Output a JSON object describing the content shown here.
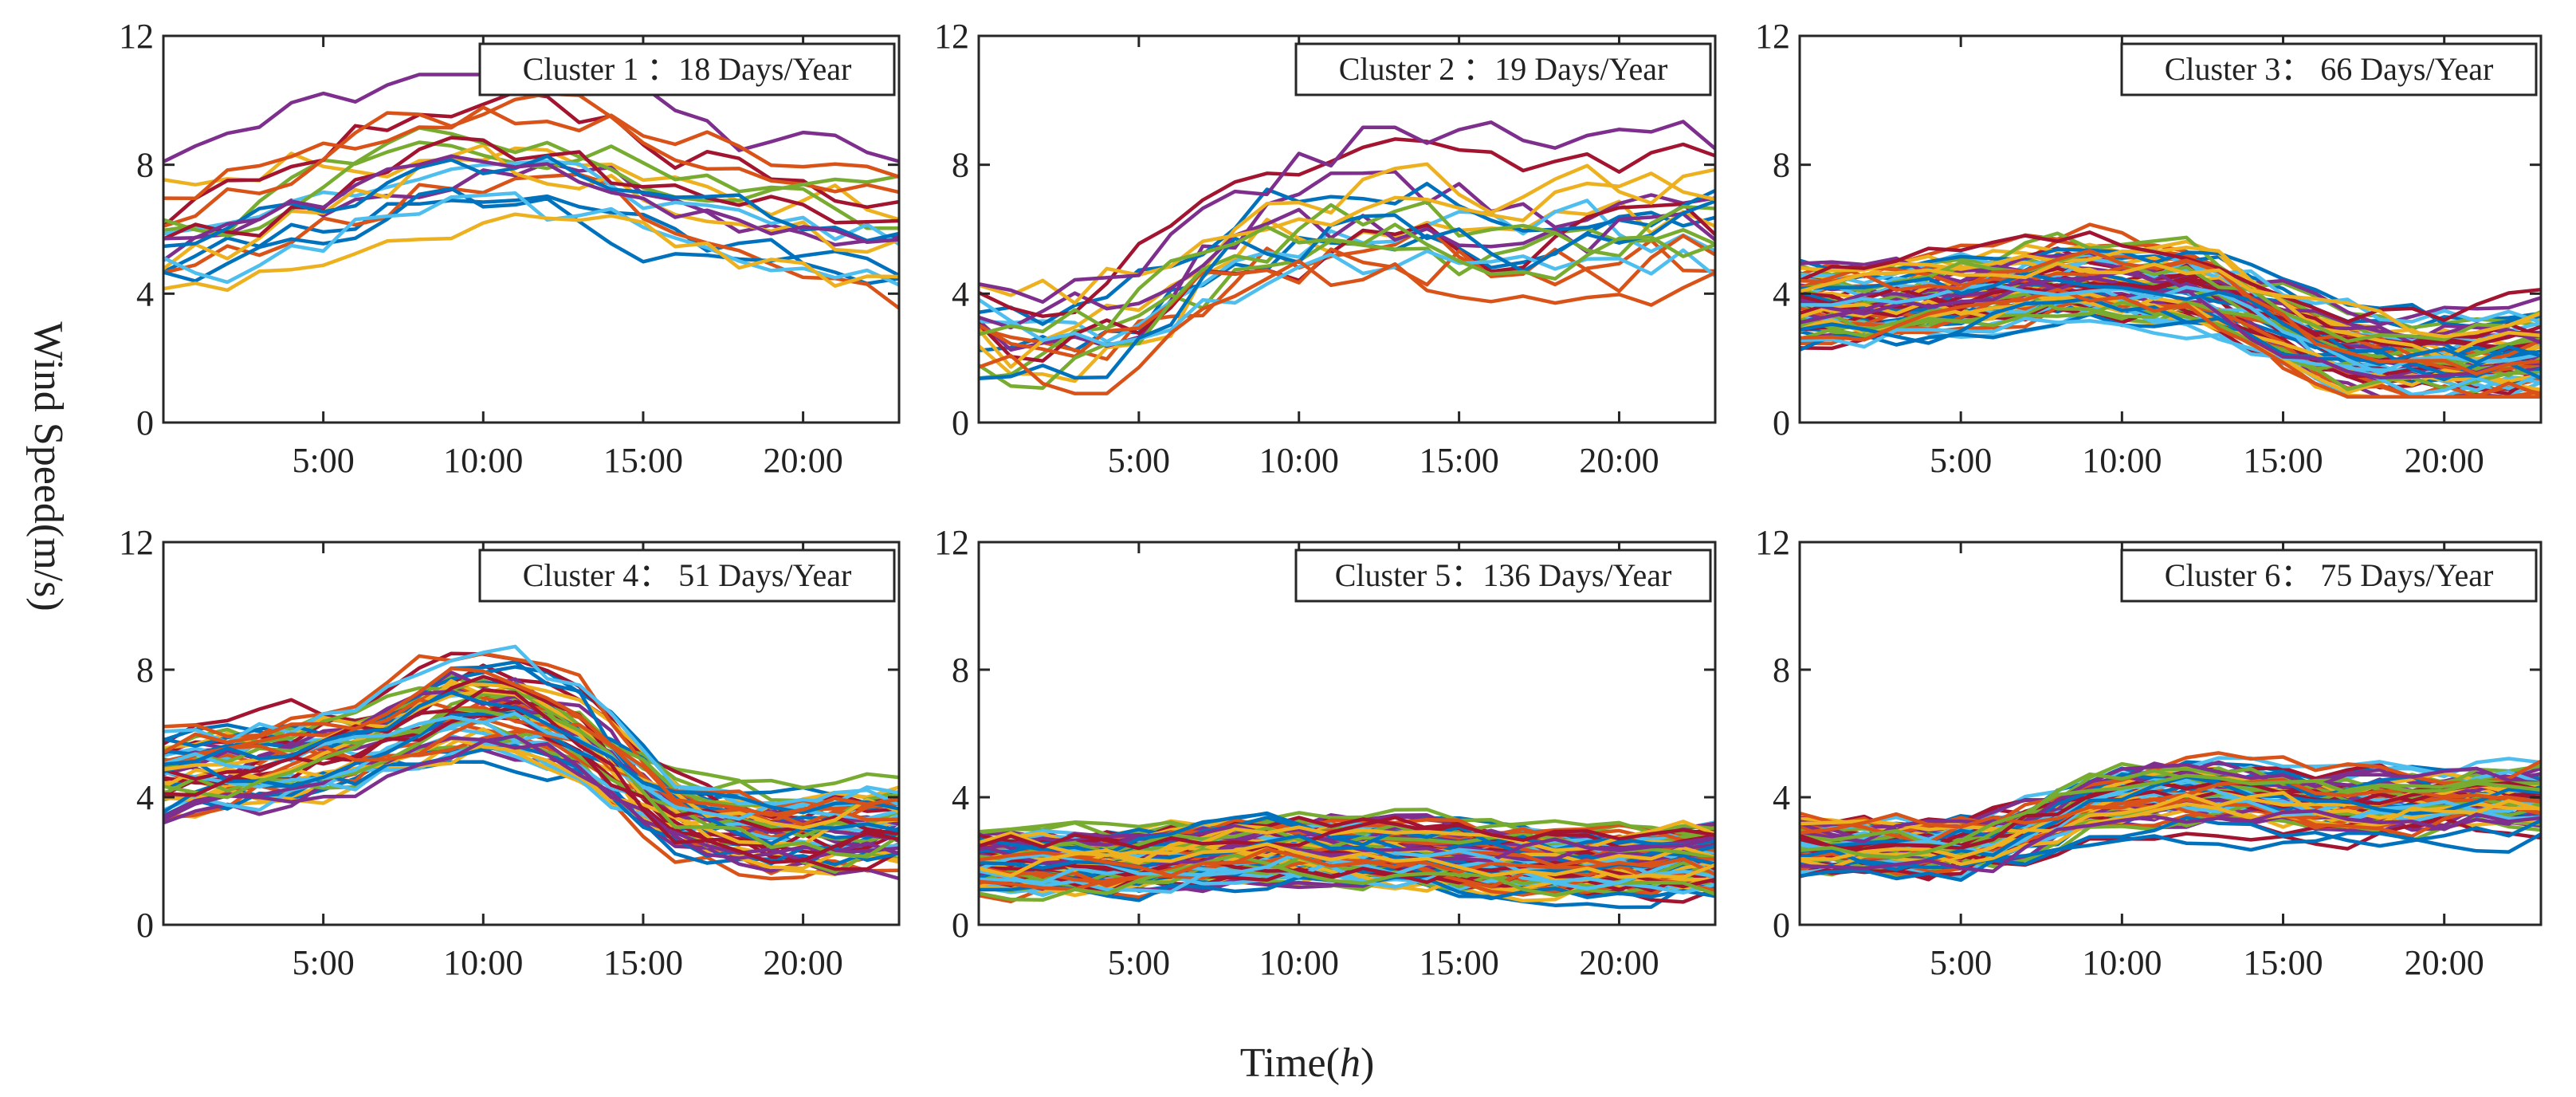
{
  "figure": {
    "ylabel": "Wind Speed(m/s)",
    "xlabel_prefix": "Time(",
    "xlabel_var": "h",
    "xlabel_suffix": ")"
  },
  "chart_data": [
    {
      "type": "line",
      "title": "Cluster 1 ：18 Days/Year",
      "days": 18,
      "xlim": [
        0,
        23
      ],
      "ylim": [
        0,
        12
      ],
      "yticks": [
        "0",
        "4",
        "8",
        "12"
      ],
      "xticks": [
        5,
        10,
        15,
        20
      ],
      "xticklabels": [
        "5:00",
        "10:00",
        "15:00",
        "20:00"
      ],
      "curve_count": 18,
      "base_profile": [
        6.0,
        6.1,
        6.3,
        6.7,
        7.1,
        7.4,
        7.7,
        8.0,
        8.3,
        8.5,
        8.5,
        8.4,
        8.3,
        8.1,
        7.9,
        7.6,
        7.3,
        7.0,
        6.8,
        6.6,
        6.5,
        6.3,
        6.2,
        6.0
      ],
      "spread": 2.0,
      "noise": 0.55,
      "ymin": 1.5,
      "ymax": 10.8,
      "seed": 11
    },
    {
      "type": "line",
      "title": "Cluster 2 ：19 Days/Year",
      "days": 19,
      "xlim": [
        0,
        23
      ],
      "ylim": [
        0,
        12
      ],
      "yticks": [
        "0",
        "4",
        "8",
        "12"
      ],
      "xticks": [
        5,
        10,
        15,
        20
      ],
      "xticklabels": [
        "5:00",
        "10:00",
        "15:00",
        "20:00"
      ],
      "curve_count": 19,
      "base_profile": [
        2.8,
        2.6,
        2.6,
        2.8,
        3.1,
        3.6,
        4.2,
        4.9,
        5.5,
        5.9,
        6.2,
        6.4,
        6.6,
        6.6,
        6.5,
        6.4,
        6.3,
        6.2,
        6.2,
        6.2,
        6.2,
        6.3,
        6.3,
        6.3
      ],
      "spread": 1.3,
      "noise": 0.75,
      "ymin": 0.9,
      "ymax": 11.0,
      "seed": 23
    },
    {
      "type": "line",
      "title": "Cluster 3： 66 Days/Year",
      "days": 66,
      "xlim": [
        0,
        23
      ],
      "ylim": [
        0,
        12
      ],
      "yticks": [
        "0",
        "4",
        "8",
        "12"
      ],
      "xticks": [
        5,
        10,
        15,
        20
      ],
      "xticklabels": [
        "5:00",
        "10:00",
        "15:00",
        "20:00"
      ],
      "curve_count": 66,
      "base_profile": [
        3.8,
        3.8,
        3.8,
        3.8,
        3.9,
        4.0,
        4.2,
        4.4,
        4.5,
        4.5,
        4.5,
        4.4,
        4.3,
        4.0,
        3.5,
        3.0,
        2.5,
        2.2,
        2.0,
        1.9,
        1.9,
        1.9,
        2.0,
        2.1
      ],
      "spread": 1.1,
      "noise": 0.4,
      "ymin": 0.8,
      "ymax": 7.8,
      "seed": 37
    },
    {
      "type": "line",
      "title": "Cluster 4： 51 Days/Year",
      "days": 51,
      "xlim": [
        0,
        23
      ],
      "ylim": [
        0,
        12
      ],
      "yticks": [
        "0",
        "4",
        "8",
        "12"
      ],
      "xticks": [
        5,
        10,
        15,
        20
      ],
      "xticklabels": [
        "5:00",
        "10:00",
        "15:00",
        "20:00"
      ],
      "curve_count": 51,
      "base_profile": [
        4.6,
        4.7,
        4.8,
        4.9,
        5.0,
        5.2,
        5.4,
        5.8,
        6.2,
        6.5,
        6.6,
        6.5,
        6.2,
        5.8,
        5.0,
        4.2,
        3.6,
        3.3,
        3.1,
        3.0,
        3.0,
        3.0,
        3.1,
        3.2
      ],
      "spread": 1.2,
      "noise": 0.45,
      "ymin": 0.7,
      "ymax": 9.6,
      "seed": 53
    },
    {
      "type": "line",
      "title": "Cluster 5：136 Days/Year",
      "days": 136,
      "xlim": [
        0,
        23
      ],
      "ylim": [
        0,
        12
      ],
      "yticks": [
        "0",
        "4",
        "8",
        "12"
      ],
      "xticks": [
        5,
        10,
        15,
        20
      ],
      "xticklabels": [
        "5:00",
        "10:00",
        "15:00",
        "20:00"
      ],
      "curve_count": 136,
      "base_profile": [
        2.0,
        2.0,
        2.0,
        2.0,
        2.0,
        2.0,
        2.1,
        2.2,
        2.3,
        2.4,
        2.4,
        2.4,
        2.3,
        2.3,
        2.2,
        2.1,
        2.0,
        2.0,
        1.9,
        1.9,
        1.9,
        1.9,
        2.0,
        2.0
      ],
      "spread": 0.75,
      "noise": 0.35,
      "ymin": 0.4,
      "ymax": 4.4,
      "seed": 71
    },
    {
      "type": "line",
      "title": "Cluster 6： 75 Days/Year",
      "days": 75,
      "xlim": [
        0,
        23
      ],
      "ylim": [
        0,
        12
      ],
      "yticks": [
        "0",
        "4",
        "8",
        "12"
      ],
      "xticks": [
        5,
        10,
        15,
        20
      ],
      "xticklabels": [
        "5:00",
        "10:00",
        "15:00",
        "20:00"
      ],
      "curve_count": 75,
      "base_profile": [
        2.4,
        2.3,
        2.3,
        2.3,
        2.3,
        2.4,
        2.6,
        2.9,
        3.3,
        3.7,
        3.9,
        4.0,
        4.1,
        4.1,
        4.0,
        3.9,
        3.8,
        3.8,
        3.8,
        3.8,
        3.8,
        3.9,
        3.9,
        4.0
      ],
      "spread": 0.75,
      "noise": 0.35,
      "ymin": 0.5,
      "ymax": 7.0,
      "seed": 89
    }
  ],
  "palette": [
    "#0072BD",
    "#D95319",
    "#EDB120",
    "#7E2F8E",
    "#77AC30",
    "#4DBEEE",
    "#A2142F"
  ]
}
